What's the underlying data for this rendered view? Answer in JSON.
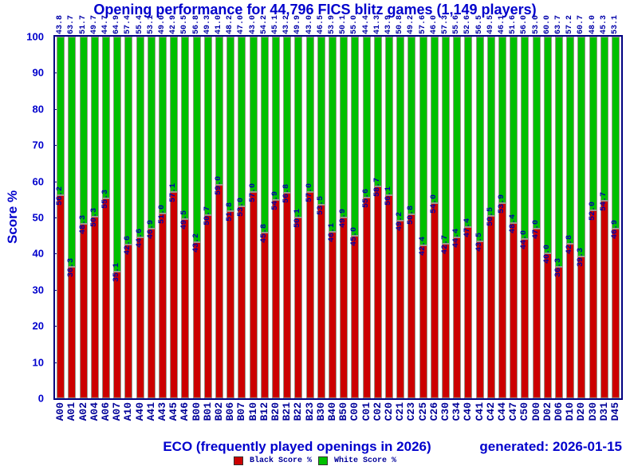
{
  "header": {
    "title": "Opening performance for 44,796 FICS blitz games (1,149 players)"
  },
  "footer": {
    "x_axis_title": "ECO (frequently played openings in 2026)",
    "generated": "generated: 2026-01-15"
  },
  "legend": {
    "position": "bottom-center",
    "entries": [
      {
        "label": "Black Score %",
        "color": "#cc0000"
      },
      {
        "label": "White Score %",
        "color": "#00c000"
      }
    ]
  },
  "colors": {
    "black_bar": "#cc0000",
    "white_bar": "#00c000",
    "frame": "#000080",
    "title_text": "#0000cc",
    "value_label_text": "#0000aa",
    "eco_label_text": "#000099",
    "background": "#ffffff"
  },
  "chart_data": {
    "type": "bar",
    "stacked": true,
    "title": "Opening performance for 44,796 FICS blitz games (1,149 players)",
    "xlabel": "ECO (frequently played openings in 2026)",
    "ylabel": "Score %",
    "ylim": [
      0,
      100
    ],
    "yticks": [
      0,
      10,
      20,
      30,
      40,
      50,
      60,
      70,
      80,
      90,
      100
    ],
    "grid": false,
    "legend_position": "bottom",
    "value_labels": "black score shown at segment boundary, white score shown above bar",
    "categories": [
      "A00",
      "A01",
      "A02",
      "A04",
      "A06",
      "A07",
      "A10",
      "A40",
      "A41",
      "A43",
      "A45",
      "A46",
      "B00",
      "B01",
      "B02",
      "B06",
      "B07",
      "B10",
      "B12",
      "B20",
      "B21",
      "B22",
      "B23",
      "B30",
      "B40",
      "B50",
      "C00",
      "C01",
      "C02",
      "C20",
      "C21",
      "C23",
      "C25",
      "C26",
      "C30",
      "C34",
      "C40",
      "C41",
      "C42",
      "C44",
      "C47",
      "C50",
      "D00",
      "D02",
      "D06",
      "D10",
      "D20",
      "D30",
      "D31",
      "D45"
    ],
    "series": [
      {
        "name": "Black Score %",
        "color": "#cc0000",
        "values": [
          56.2,
          36.3,
          48.3,
          50.3,
          55.3,
          35.1,
          42.6,
          44.6,
          46.9,
          51.0,
          57.1,
          49.5,
          43.2,
          50.7,
          59.0,
          51.8,
          53.0,
          57.0,
          45.8,
          54.9,
          56.8,
          50.1,
          57.0,
          53.5,
          46.1,
          49.9,
          45.0,
          55.6,
          58.7,
          56.1,
          49.2,
          50.8,
          42.4,
          54.0,
          42.7,
          44.4,
          47.4,
          43.5,
          50.5,
          53.9,
          48.4,
          44.0,
          47.0,
          40.0,
          36.3,
          42.8,
          39.3,
          52.0,
          54.7,
          46.9
        ]
      },
      {
        "name": "White Score %",
        "color": "#00c000",
        "values": [
          43.8,
          63.7,
          51.7,
          49.7,
          44.7,
          64.9,
          57.4,
          55.4,
          53.1,
          49.0,
          42.9,
          50.5,
          56.8,
          49.3,
          41.0,
          48.2,
          47.0,
          43.0,
          54.2,
          45.1,
          43.2,
          49.9,
          43.0,
          46.5,
          53.9,
          50.1,
          55.0,
          44.4,
          41.3,
          43.9,
          50.8,
          49.2,
          57.6,
          46.0,
          57.3,
          55.6,
          52.6,
          56.5,
          49.5,
          46.1,
          51.6,
          56.0,
          53.0,
          60.0,
          63.7,
          57.2,
          60.7,
          48.0,
          45.3,
          53.1
        ]
      }
    ]
  }
}
